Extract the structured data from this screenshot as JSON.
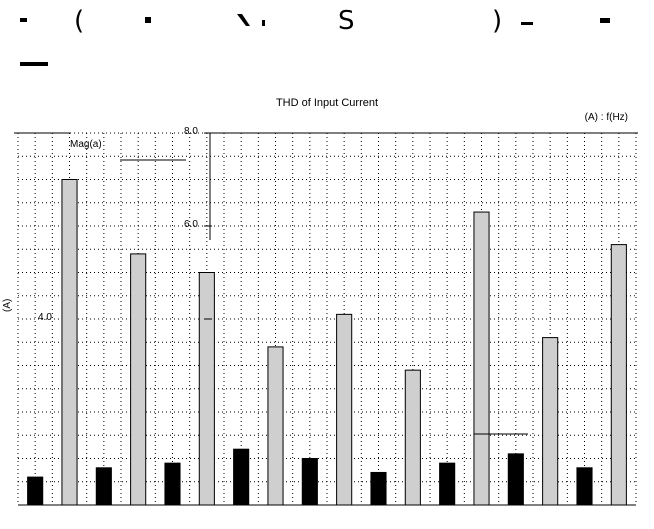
{
  "header_glyphs": [
    "(",
    "S",
    ")"
  ],
  "chart_data": {
    "type": "bar",
    "title": "THD of Input Current",
    "axis_note": "(A) : f(Hz)",
    "ylabel": "(A)",
    "legend_label": "Mag(a)",
    "ylim": [
      0,
      8.0
    ],
    "yticks": [
      "8.0",
      "6.0",
      "4.0"
    ],
    "ytick_values": [
      8.0,
      6.0,
      4.0
    ],
    "grid": true,
    "series": [
      {
        "name": "Mag(a)",
        "values": [
          0.6,
          7.0,
          0.8,
          5.4,
          0.9,
          5.0,
          1.2,
          3.4,
          1.0,
          4.1,
          0.7,
          2.9,
          0.9,
          6.3,
          1.1,
          3.6,
          0.8,
          5.6
        ]
      }
    ]
  }
}
